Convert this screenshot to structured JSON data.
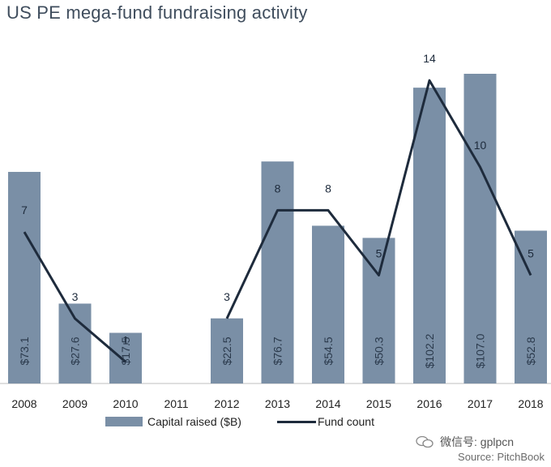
{
  "title": "US PE mega-fund fundraising activity",
  "legend": {
    "bar_label": "Capital raised ($B)",
    "line_label": "Fund count"
  },
  "watermark": {
    "text": "微信号: gplpcn"
  },
  "source": "Source: PitchBook",
  "colors": {
    "bar": "#7a8fa6",
    "line": "#1e2b3c",
    "title": "#3f4d5d"
  },
  "chart_data": {
    "type": "bar",
    "title": "US PE mega-fund fundraising activity",
    "categories": [
      "2008",
      "2009",
      "2010",
      "2011",
      "2012",
      "2013",
      "2014",
      "2015",
      "2016",
      "2017",
      "2018"
    ],
    "series": [
      {
        "name": "Capital raised ($B)",
        "type": "bar",
        "values": [
          73.1,
          27.6,
          17.5,
          null,
          22.5,
          76.7,
          54.5,
          50.3,
          102.2,
          107.0,
          52.8
        ],
        "labels": [
          "$73.1",
          "$27.6",
          "$17.5",
          "",
          "$22.5",
          "$76.7",
          "$54.5",
          "$50.3",
          "$102.2",
          "$107.0",
          "$52.8"
        ]
      },
      {
        "name": "Fund count",
        "type": "line",
        "values": [
          7,
          3,
          1,
          null,
          3,
          8,
          8,
          5,
          14,
          10,
          5
        ],
        "labels": [
          "7",
          "3",
          "1",
          "",
          "3",
          "8",
          "8",
          "5",
          "14",
          "10",
          "5"
        ]
      }
    ],
    "xlabel": "",
    "ylabel": "",
    "y_axis_visible": false,
    "grid": false,
    "legend_position": "bottom"
  }
}
